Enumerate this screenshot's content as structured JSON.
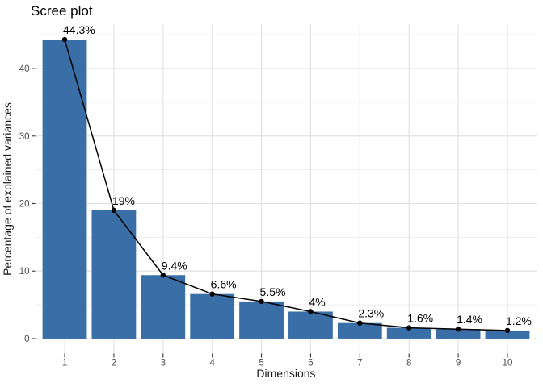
{
  "chart_data": {
    "type": "bar",
    "title": "Scree plot",
    "xlabel": "Dimensions",
    "ylabel": "Percentage of explained variances",
    "categories": [
      "1",
      "2",
      "3",
      "4",
      "5",
      "6",
      "7",
      "8",
      "9",
      "10"
    ],
    "values": [
      44.3,
      19,
      9.4,
      6.6,
      5.5,
      4,
      2.3,
      1.6,
      1.4,
      1.2
    ],
    "value_labels": [
      "44.3%",
      "19%",
      "9.4%",
      "6.6%",
      "5.5%",
      "4%",
      "2.3%",
      "1.6%",
      "1.4%",
      "1.2%"
    ],
    "overlay": "line-with-points",
    "ylim": [
      0,
      44.3
    ],
    "y_major_ticks": [
      0,
      10,
      20,
      30,
      40
    ],
    "y_minor_ticks": [
      5,
      15,
      25,
      35,
      45
    ],
    "grid": true,
    "legend_position": "none",
    "colors": {
      "bar_fill": "#3A6EA7",
      "line": "#000000",
      "point": "#000000",
      "grid_major": "#E3E3E3",
      "grid_minor": "#EDEDED",
      "axis_tick": "#333333",
      "tick_label": "#4D4D4D",
      "text": "#000000",
      "background": "#FFFFFF"
    }
  }
}
